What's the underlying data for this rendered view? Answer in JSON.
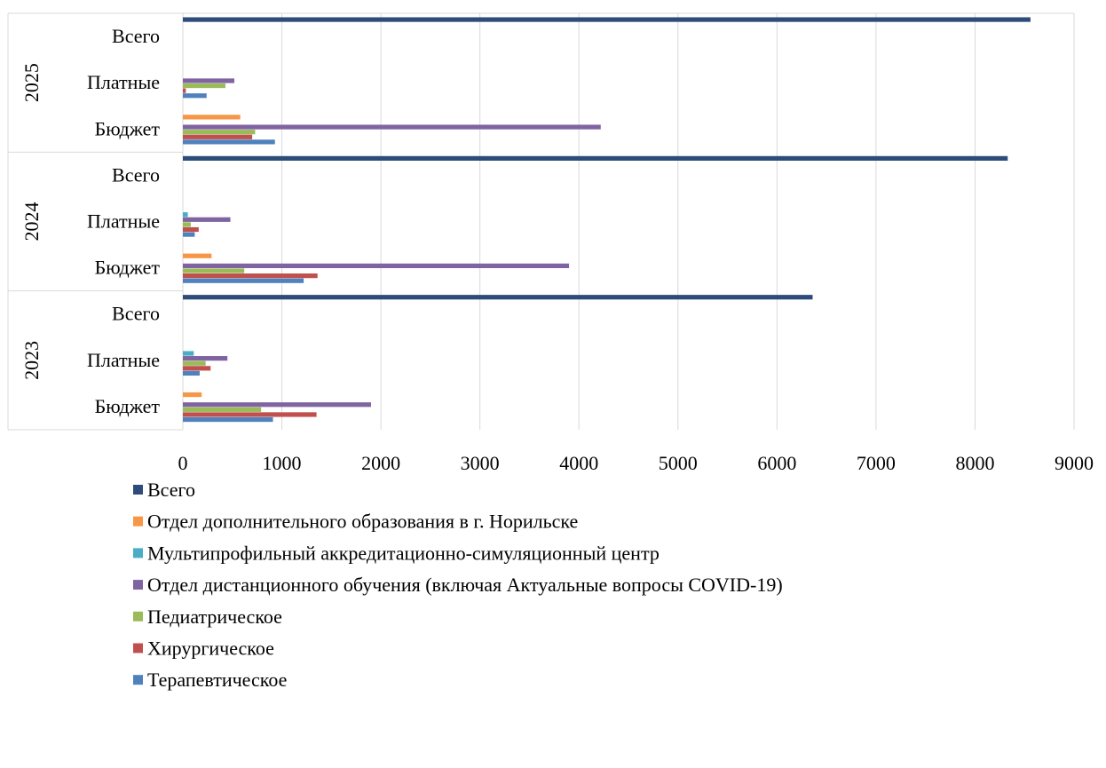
{
  "chart_data": {
    "type": "bar",
    "orientation": "horizontal",
    "grid": true,
    "legend_position": "bottom",
    "xlim": [
      0,
      9000
    ],
    "x_ticks": [
      "0",
      "1000",
      "2000",
      "3000",
      "4000",
      "5000",
      "6000",
      "7000",
      "8000",
      "9000"
    ],
    "groups": [
      {
        "year": "2025",
        "categories": [
          "Всего",
          "Платные",
          "Бюджет"
        ]
      },
      {
        "year": "2024",
        "categories": [
          "Всего",
          "Платные",
          "Бюджет"
        ]
      },
      {
        "year": "2023",
        "categories": [
          "Всего",
          "Платные",
          "Бюджет"
        ]
      }
    ],
    "series": [
      {
        "name": "Всего",
        "color": "#2E4C7A",
        "values": {
          "2025": [
            8560,
            0,
            0
          ],
          "2024": [
            8330,
            0,
            0
          ],
          "2023": [
            6360,
            0,
            0
          ]
        }
      },
      {
        "name": "Отдел дополнительного образования в г. Норильске",
        "color": "#F79646",
        "values": {
          "2025": [
            0,
            0,
            580
          ],
          "2024": [
            0,
            0,
            290
          ],
          "2023": [
            0,
            0,
            190
          ]
        }
      },
      {
        "name": "Мультипрофильный аккредитационно-симуляционный центр",
        "color": "#4BACC6",
        "values": {
          "2025": [
            0,
            0,
            0
          ],
          "2024": [
            0,
            50,
            0
          ],
          "2023": [
            0,
            110,
            0
          ]
        }
      },
      {
        "name": "Отдел дистанционного обучения (включая Актуальные вопросы  COVID-19)",
        "color": "#8064A2",
        "values": {
          "2025": [
            0,
            520,
            4220
          ],
          "2024": [
            0,
            480,
            3900
          ],
          "2023": [
            0,
            450,
            1900
          ]
        }
      },
      {
        "name": "Педиатрическое",
        "color": "#9BBB59",
        "values": {
          "2025": [
            0,
            430,
            730
          ],
          "2024": [
            0,
            80,
            620
          ],
          "2023": [
            0,
            230,
            790
          ]
        }
      },
      {
        "name": "Хирургическое",
        "color": "#C0504D",
        "values": {
          "2025": [
            0,
            30,
            700
          ],
          "2024": [
            0,
            160,
            1360
          ],
          "2023": [
            0,
            280,
            1350
          ]
        }
      },
      {
        "name": "Терапевтическое",
        "color": "#4F81BD",
        "values": {
          "2025": [
            0,
            240,
            930
          ],
          "2024": [
            0,
            120,
            1220
          ],
          "2023": [
            0,
            170,
            910
          ]
        }
      }
    ]
  }
}
